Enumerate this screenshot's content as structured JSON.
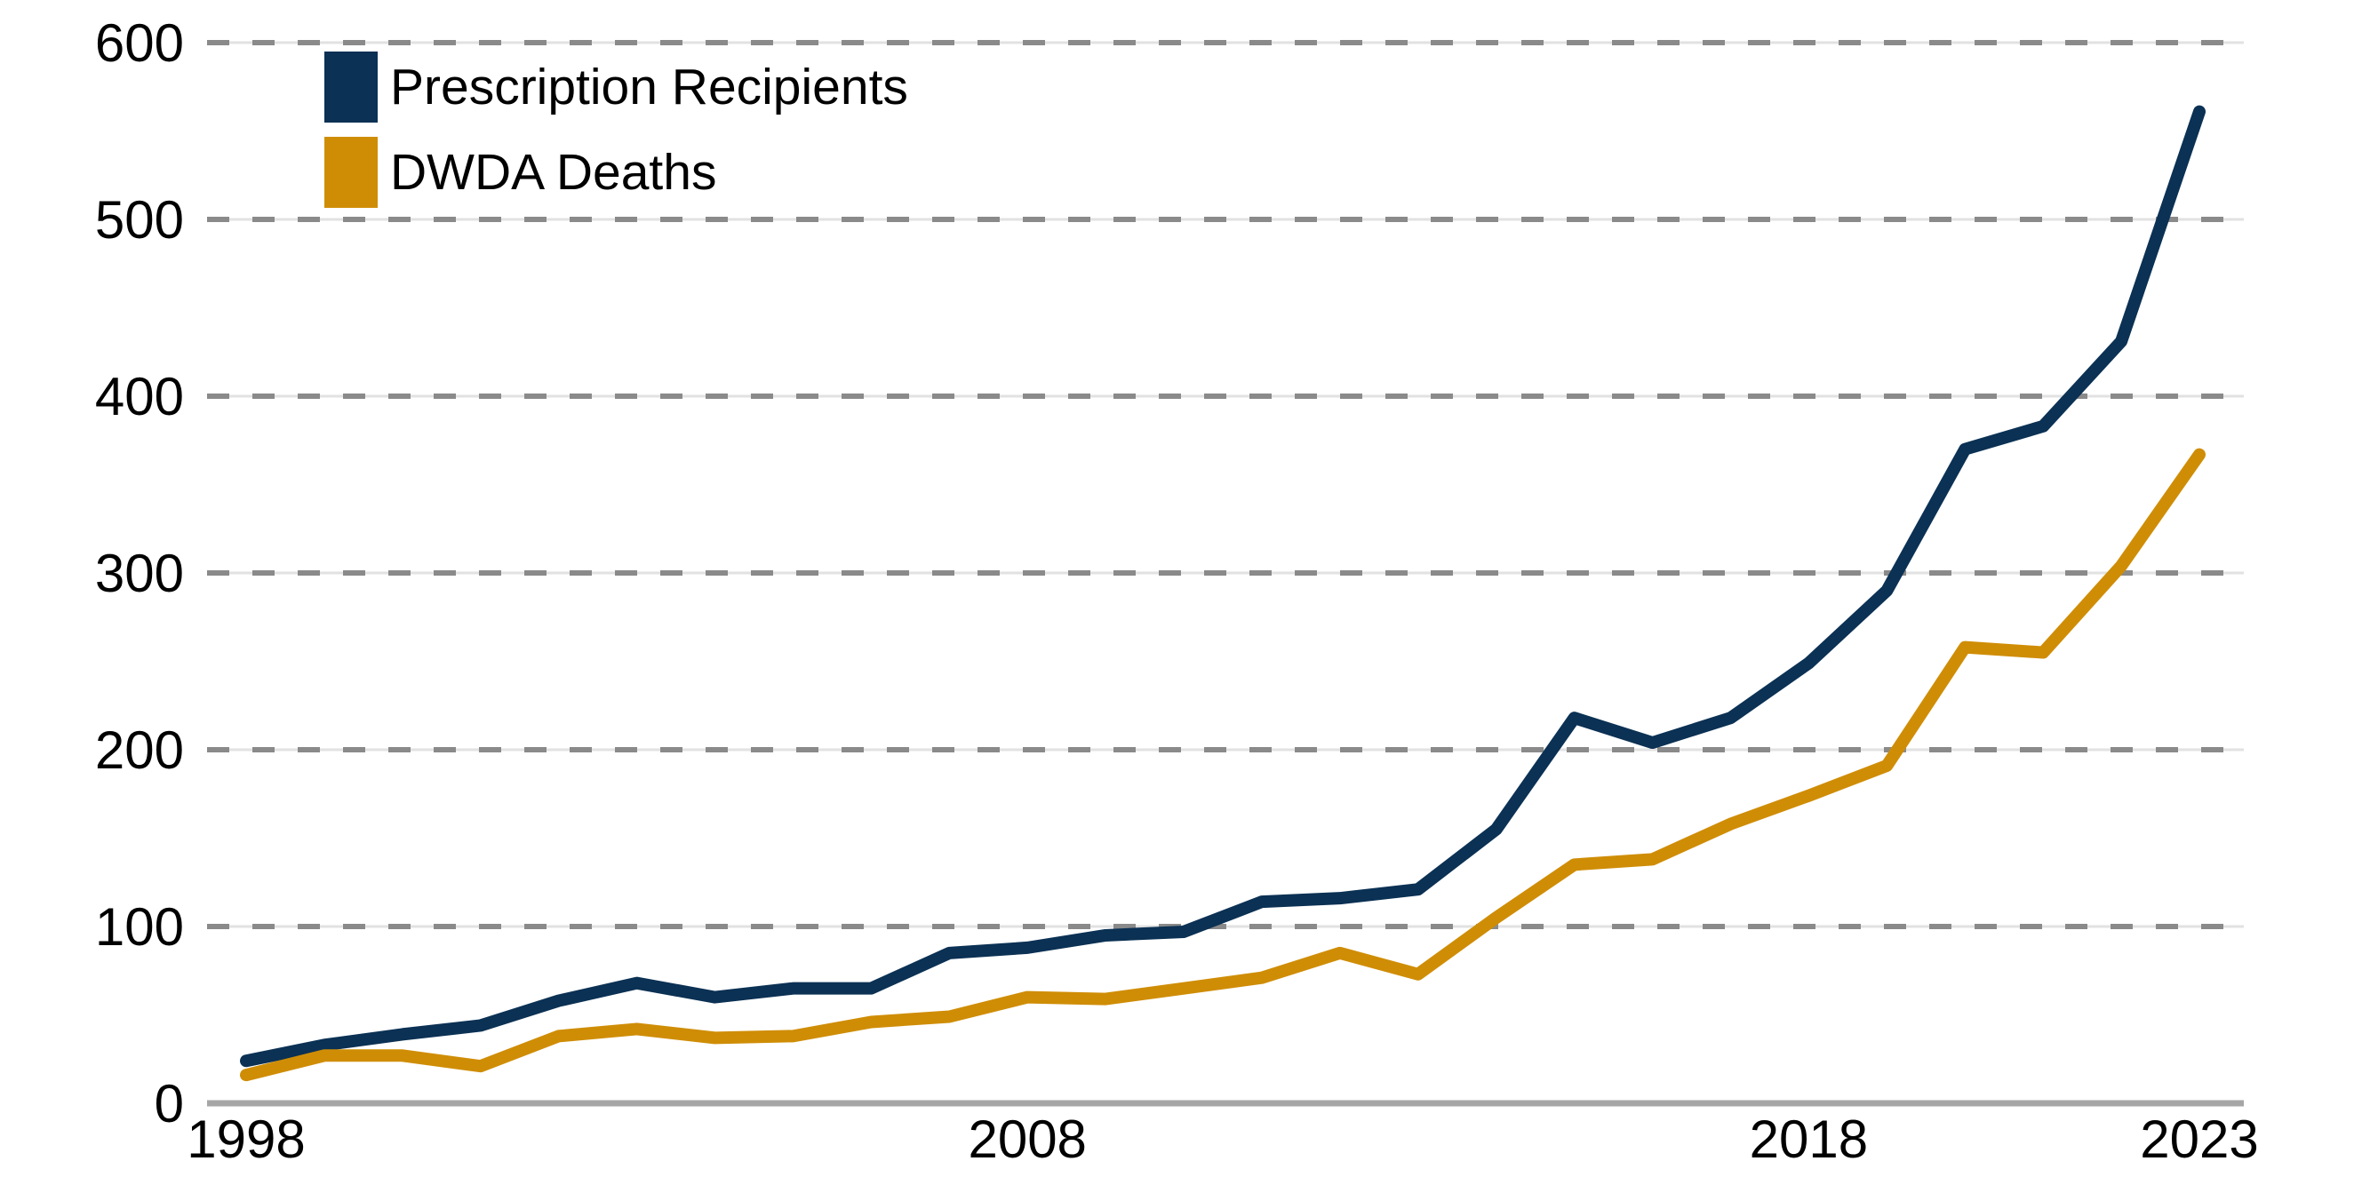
{
  "chart_data": {
    "type": "line",
    "title": "",
    "xlabel": "",
    "ylabel": "",
    "x": [
      1998,
      1999,
      2000,
      2001,
      2002,
      2003,
      2004,
      2005,
      2006,
      2007,
      2008,
      2009,
      2010,
      2011,
      2012,
      2013,
      2014,
      2015,
      2016,
      2017,
      2018,
      2019,
      2020,
      2021,
      2022,
      2023
    ],
    "series": [
      {
        "name": "Prescription Recipients",
        "color": "#0B3154",
        "values": [
          24,
          33,
          39,
          44,
          58,
          68,
          60,
          65,
          65,
          85,
          88,
          95,
          97,
          114,
          116,
          121,
          155,
          218,
          204,
          218,
          249,
          290,
          370,
          383,
          431,
          561
        ]
      },
      {
        "name": "DWDA Deaths",
        "color": "#CF8D06",
        "values": [
          16,
          27,
          27,
          21,
          38,
          42,
          37,
          38,
          46,
          49,
          60,
          59,
          65,
          71,
          85,
          73,
          105,
          135,
          138,
          158,
          174,
          191,
          258,
          255,
          304,
          367
        ]
      }
    ],
    "ylim": [
      0,
      600
    ],
    "y_ticks": [
      0,
      100,
      200,
      300,
      400,
      500,
      600
    ],
    "x_tick_labels": [
      1998,
      2008,
      2018,
      2023
    ],
    "legend_position": "top-left",
    "grid": {
      "horizontal_dashed": true,
      "dash_color": "#8A8A8A",
      "faint_line_color": "#E2E2E2",
      "axis_color": "#A6A6A6"
    },
    "text_color": "#000000",
    "background": "#FFFFFF"
  }
}
